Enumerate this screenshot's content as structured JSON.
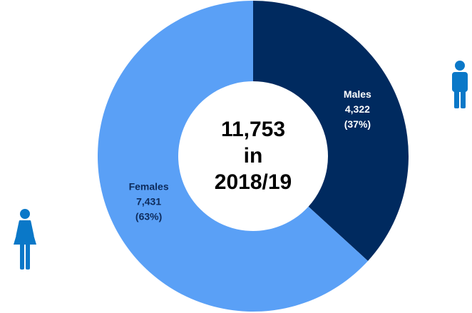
{
  "chart_data": {
    "type": "donut",
    "categories": [
      "Males",
      "Females"
    ],
    "values": [
      4322,
      7431
    ],
    "value_labels": [
      "4,322",
      "7,431"
    ],
    "percentages": [
      37,
      63
    ],
    "percent_labels": [
      "(37%)",
      "(63%)"
    ],
    "colors": [
      "#002a5f",
      "#5aa0f6"
    ],
    "center_text": [
      "11,753",
      "in",
      "2018/19"
    ]
  }
}
